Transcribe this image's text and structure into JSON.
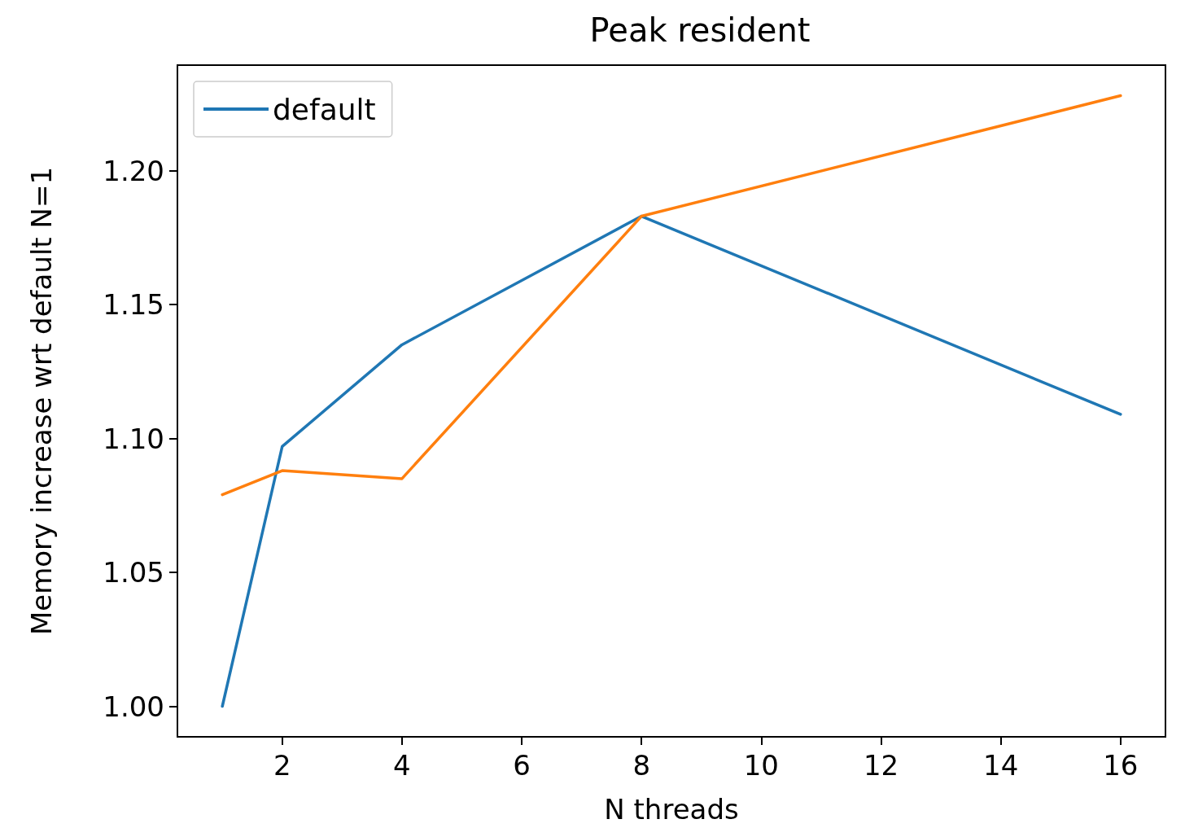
{
  "chart_data": {
    "type": "line",
    "title": "Peak resident",
    "xlabel": "N threads",
    "ylabel": "Memory increase wrt default N=1",
    "x": [
      1,
      2,
      4,
      8,
      16
    ],
    "series": [
      {
        "name": "default",
        "color": "#1f77b4",
        "values": [
          1.0,
          1.097,
          1.135,
          1.183,
          1.109
        ]
      },
      {
        "color": "#ff7f0e",
        "values": [
          1.079,
          1.088,
          1.085,
          1.183,
          1.228
        ]
      }
    ],
    "xlim": [
      0.25,
      16.75
    ],
    "xticks": [
      2,
      4,
      6,
      8,
      10,
      12,
      14,
      16
    ],
    "ylim": [
      0.9886,
      1.2394
    ],
    "yticks": [
      {
        "value": 1.0,
        "label": "1.00"
      },
      {
        "value": 1.05,
        "label": "1.05"
      },
      {
        "value": 1.1,
        "label": "1.10"
      },
      {
        "value": 1.15,
        "label": "1.15"
      },
      {
        "value": 1.2,
        "label": "1.20"
      }
    ],
    "legend": "top left",
    "grid": false,
    "marker": "none",
    "line_style": "solid"
  }
}
